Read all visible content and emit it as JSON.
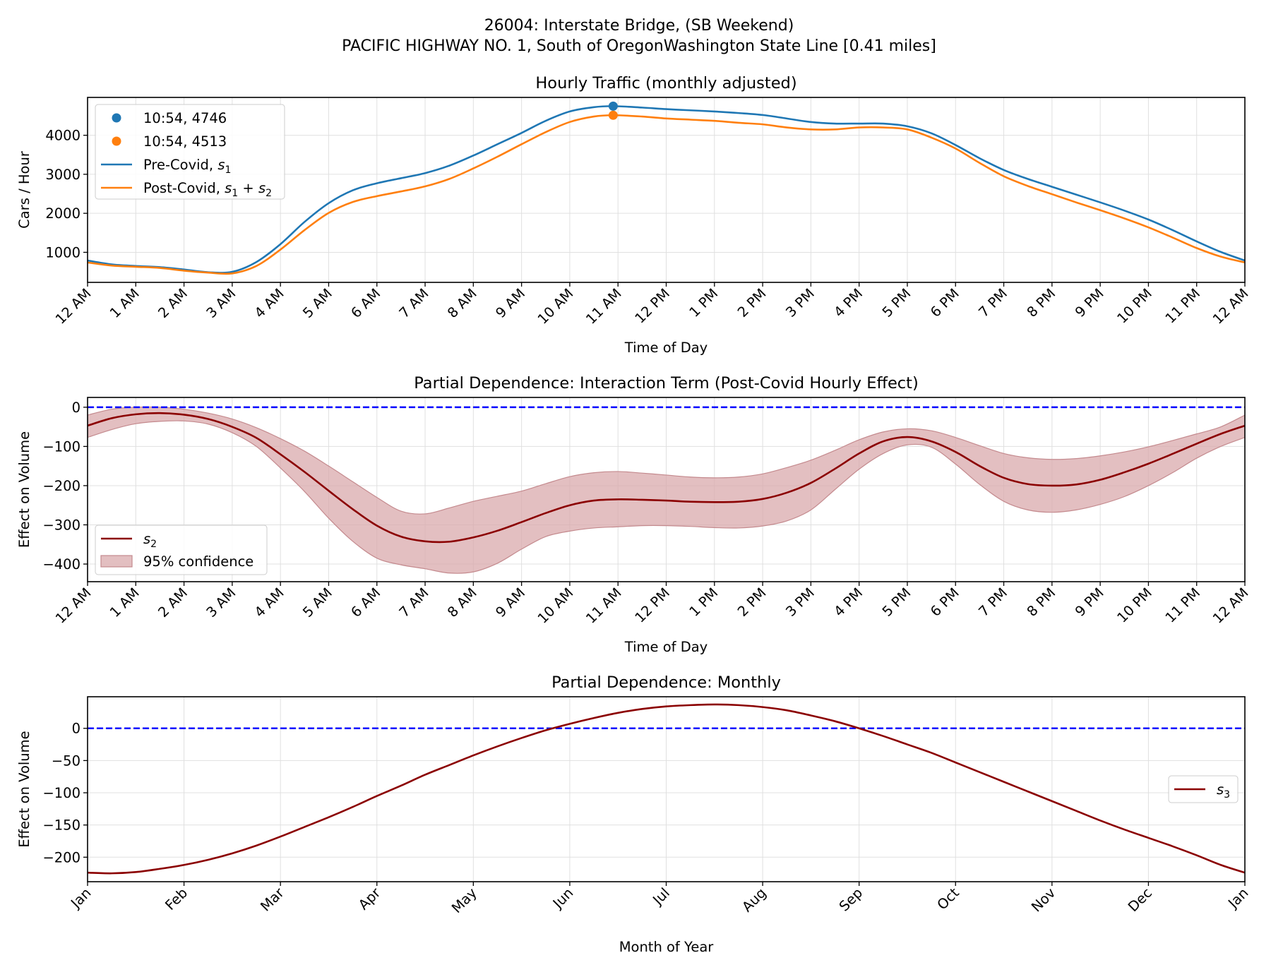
{
  "figure": {
    "title_line1": "26004: Interstate Bridge, (SB Weekend)",
    "title_line2": "PACIFIC HIGHWAY NO. 1, South of OregonWashington State Line [0.41 miles]"
  },
  "colors": {
    "pre_covid": "#1f77b4",
    "post_covid": "#ff7f0e",
    "interaction": "#8b0000",
    "ci_fill": "#d9a9ac",
    "ci_edge": "#c48a8e",
    "zero_line": "#0000ff",
    "grid": "#e0e0e0"
  },
  "chart_data": [
    {
      "type": "line",
      "title": "Hourly Traffic (monthly adjusted)",
      "xlabel": "Time of Day",
      "ylabel": "Cars / Hour",
      "xlim": [
        0,
        24
      ],
      "ylim": [
        230,
        4970
      ],
      "xticks": [
        0,
        1,
        2,
        3,
        4,
        5,
        6,
        7,
        8,
        9,
        10,
        11,
        12,
        13,
        14,
        15,
        16,
        17,
        18,
        19,
        20,
        21,
        22,
        23,
        24
      ],
      "xtick_labels": [
        "12 AM",
        "1 AM",
        "2 AM",
        "3 AM",
        "4 AM",
        "5 AM",
        "6 AM",
        "7 AM",
        "8 AM",
        "9 AM",
        "10 AM",
        "11 AM",
        "12 PM",
        "1 PM",
        "2 PM",
        "3 PM",
        "4 PM",
        "5 PM",
        "6 PM",
        "7 PM",
        "8 PM",
        "9 PM",
        "10 PM",
        "11 PM",
        "12 AM"
      ],
      "yticks": [
        1000,
        2000,
        3000,
        4000
      ],
      "ytick_labels": [
        "1000",
        "2000",
        "3000",
        "4000"
      ],
      "grid": true,
      "legend_position": "upper-left",
      "x": [
        0,
        0.5,
        1,
        1.5,
        2,
        2.5,
        3,
        3.5,
        4,
        4.5,
        5,
        5.5,
        6,
        6.5,
        7,
        7.5,
        8,
        8.5,
        9,
        9.5,
        10,
        10.5,
        10.9,
        11.5,
        12,
        12.5,
        13,
        13.5,
        14,
        14.5,
        15,
        15.5,
        16,
        16.5,
        17,
        17.5,
        18,
        18.5,
        19,
        19.5,
        20,
        20.5,
        21,
        21.5,
        22,
        22.5,
        23,
        23.5,
        24
      ],
      "series": [
        {
          "name": "Pre-Covid, s1",
          "legend_base": "Pre-Covid, ",
          "legend_sub": "1",
          "values": [
            790,
            690,
            650,
            620,
            560,
            490,
            500,
            750,
            1210,
            1780,
            2260,
            2590,
            2770,
            2900,
            3030,
            3220,
            3480,
            3770,
            4060,
            4370,
            4610,
            4720,
            4746,
            4710,
            4670,
            4640,
            4610,
            4570,
            4520,
            4430,
            4340,
            4300,
            4300,
            4300,
            4230,
            4050,
            3750,
            3410,
            3110,
            2880,
            2680,
            2480,
            2280,
            2070,
            1840,
            1570,
            1280,
            1010,
            790
          ]
        },
        {
          "name": "Post-Covid, s1 + s2",
          "legend_base": "Post-Covid, ",
          "legend_sub": "1",
          "legend_extra": " + ",
          "legend_sub2": "2",
          "values": [
            740,
            660,
            630,
            600,
            530,
            480,
            460,
            650,
            1070,
            1570,
            2010,
            2290,
            2440,
            2560,
            2690,
            2880,
            3150,
            3450,
            3770,
            4080,
            4340,
            4480,
            4513,
            4480,
            4430,
            4400,
            4370,
            4320,
            4280,
            4200,
            4150,
            4150,
            4200,
            4200,
            4150,
            3940,
            3660,
            3290,
            2950,
            2700,
            2490,
            2280,
            2080,
            1870,
            1640,
            1380,
            1110,
            890,
            740
          ]
        }
      ],
      "highlight_points": [
        {
          "x": 10.9,
          "y": 4746,
          "label": "10:54, 4746",
          "series": "Pre-Covid"
        },
        {
          "x": 10.9,
          "y": 4513,
          "label": "10:54, 4513",
          "series": "Post-Covid"
        }
      ]
    },
    {
      "type": "line",
      "title": "Partial Dependence: Interaction Term (Post-Covid Hourly Effect)",
      "xlabel": "Time of Day",
      "ylabel": "Effect on Volume",
      "xlim": [
        0,
        24
      ],
      "ylim": [
        -445,
        25
      ],
      "xticks": [
        0,
        1,
        2,
        3,
        4,
        5,
        6,
        7,
        8,
        9,
        10,
        11,
        12,
        13,
        14,
        15,
        16,
        17,
        18,
        19,
        20,
        21,
        22,
        23,
        24
      ],
      "xtick_labels": [
        "12 AM",
        "1 AM",
        "2 AM",
        "3 AM",
        "4 AM",
        "5 AM",
        "6 AM",
        "7 AM",
        "8 AM",
        "9 AM",
        "10 AM",
        "11 AM",
        "12 PM",
        "1 PM",
        "2 PM",
        "3 PM",
        "4 PM",
        "5 PM",
        "6 PM",
        "7 PM",
        "8 PM",
        "9 PM",
        "10 PM",
        "11 PM",
        "12 AM"
      ],
      "yticks": [
        0,
        -100,
        -200,
        -300,
        -400
      ],
      "ytick_labels": [
        "0",
        "−100",
        "−200",
        "−300",
        "−400"
      ],
      "grid": true,
      "legend_position": "lower-left",
      "reference_line": 0,
      "x": [
        0,
        0.5,
        1,
        1.5,
        2,
        2.5,
        3,
        3.5,
        4,
        4.5,
        5,
        5.5,
        6,
        6.5,
        7,
        7.5,
        8,
        8.5,
        9,
        9.5,
        10,
        10.5,
        11,
        11.5,
        12,
        12.5,
        13,
        13.5,
        14,
        14.5,
        15,
        15.5,
        16,
        16.5,
        17,
        17.5,
        18,
        18.5,
        19,
        19.5,
        20,
        20.5,
        21,
        21.5,
        22,
        22.5,
        23,
        23.5,
        24
      ],
      "series": [
        {
          "name": "s2",
          "legend_base": "",
          "legend_sub": "2",
          "values": [
            -47,
            -28,
            -18,
            -15,
            -19,
            -30,
            -50,
            -78,
            -120,
            -165,
            -213,
            -260,
            -302,
            -330,
            -342,
            -343,
            -332,
            -315,
            -293,
            -270,
            -250,
            -238,
            -235,
            -236,
            -238,
            -241,
            -242,
            -241,
            -234,
            -218,
            -193,
            -157,
            -118,
            -87,
            -76,
            -87,
            -114,
            -150,
            -180,
            -196,
            -200,
            -197,
            -185,
            -166,
            -144,
            -119,
            -93,
            -68,
            -47
          ],
          "ci_upper": [
            -20,
            -5,
            0,
            0,
            -5,
            -15,
            -30,
            -52,
            -80,
            -112,
            -150,
            -190,
            -230,
            -265,
            -272,
            -257,
            -240,
            -227,
            -214,
            -195,
            -177,
            -167,
            -164,
            -168,
            -173,
            -178,
            -180,
            -178,
            -170,
            -154,
            -135,
            -110,
            -83,
            -63,
            -55,
            -60,
            -77,
            -98,
            -118,
            -129,
            -133,
            -131,
            -124,
            -114,
            -101,
            -85,
            -68,
            -50,
            -20
          ],
          "ci_lower": [
            -77,
            -57,
            -42,
            -36,
            -35,
            -43,
            -65,
            -100,
            -155,
            -215,
            -283,
            -342,
            -385,
            -402,
            -412,
            -423,
            -420,
            -398,
            -362,
            -330,
            -316,
            -308,
            -305,
            -302,
            -302,
            -304,
            -307,
            -308,
            -303,
            -290,
            -262,
            -210,
            -158,
            -118,
            -96,
            -102,
            -145,
            -197,
            -240,
            -262,
            -268,
            -262,
            -248,
            -228,
            -200,
            -167,
            -130,
            -100,
            -77
          ]
        }
      ],
      "band_label": "95% confidence"
    },
    {
      "type": "line",
      "title": "Partial Dependence: Monthly",
      "xlabel": "Month of Year",
      "ylabel": "Effect on Volume",
      "xlim": [
        0,
        12
      ],
      "ylim": [
        -238,
        49
      ],
      "xticks": [
        0,
        1,
        2,
        3,
        4,
        5,
        6,
        7,
        8,
        9,
        10,
        11,
        12
      ],
      "xtick_labels": [
        "Jan",
        "Feb",
        "Mar",
        "Apr",
        "May",
        "Jun",
        "Jul",
        "Aug",
        "Sep",
        "Oct",
        "Nov",
        "Dec",
        "Jan"
      ],
      "yticks": [
        0,
        -50,
        -100,
        -150,
        -200
      ],
      "ytick_labels": [
        "0",
        "−50",
        "−100",
        "−150",
        "−200"
      ],
      "grid": true,
      "legend_position": "center-right",
      "reference_line": 0,
      "x": [
        0,
        0.25,
        0.5,
        0.75,
        1,
        1.25,
        1.5,
        1.75,
        2,
        2.25,
        2.5,
        2.75,
        3,
        3.25,
        3.5,
        3.75,
        4,
        4.25,
        4.5,
        4.75,
        5,
        5.25,
        5.5,
        5.75,
        6,
        6.25,
        6.5,
        6.75,
        7,
        7.25,
        7.5,
        7.75,
        8,
        8.25,
        8.5,
        8.75,
        9,
        9.25,
        9.5,
        9.75,
        10,
        10.25,
        10.5,
        10.75,
        11,
        11.25,
        11.5,
        11.75,
        12
      ],
      "series": [
        {
          "name": "s3",
          "legend_base": "",
          "legend_sub": "3",
          "values": [
            -224,
            -225,
            -223,
            -218,
            -212,
            -204,
            -194,
            -182,
            -168,
            -153,
            -138,
            -122,
            -105,
            -89,
            -72,
            -57,
            -42,
            -28,
            -15,
            -3,
            7,
            16,
            24,
            30,
            34,
            36,
            37,
            36,
            33,
            28,
            20,
            11,
            0,
            -12,
            -25,
            -38,
            -53,
            -68,
            -83,
            -98,
            -113,
            -128,
            -143,
            -157,
            -170,
            -183,
            -197,
            -212,
            -224
          ]
        }
      ]
    }
  ]
}
